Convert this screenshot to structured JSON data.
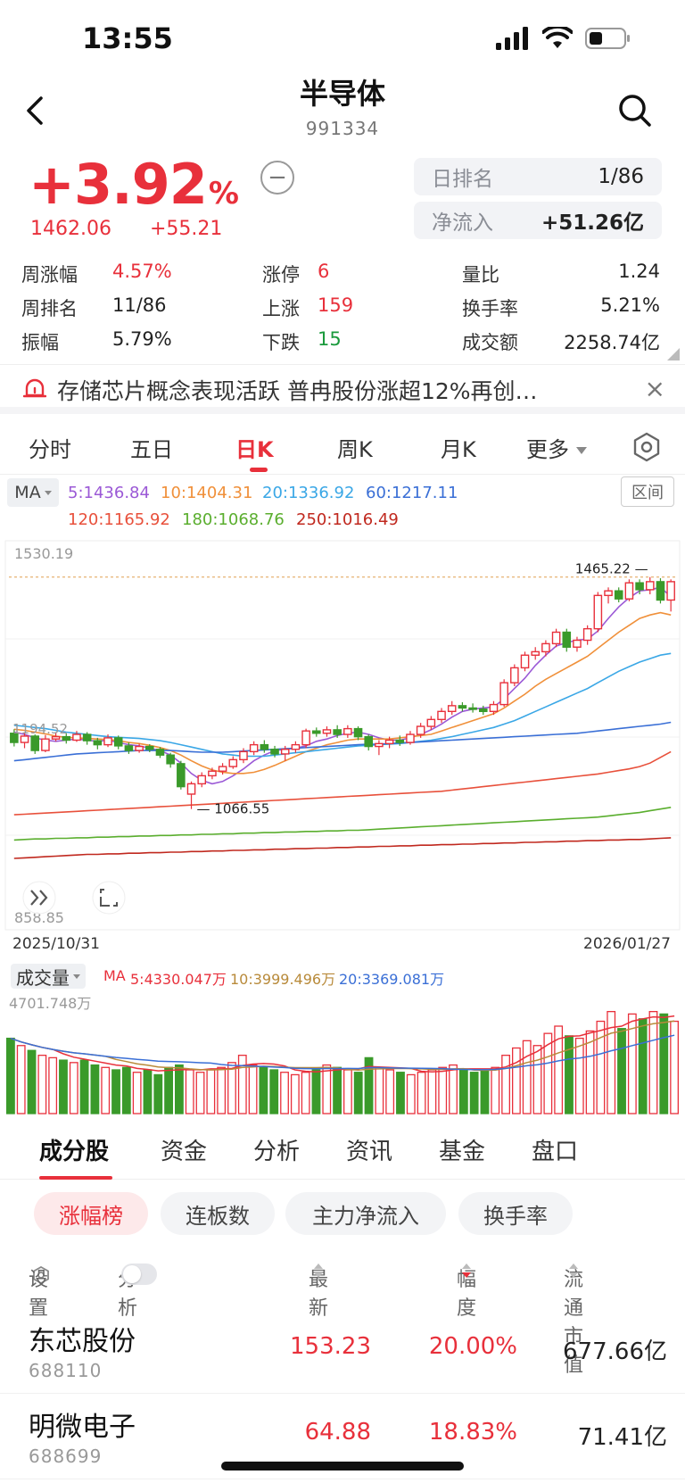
{
  "status_bar": {
    "time": "13:55"
  },
  "header": {
    "title": "半导体",
    "code": "991334"
  },
  "quote": {
    "change_pct": "+3.92",
    "pct_unit": "%",
    "price": "1462.06",
    "change": "+55.21",
    "minus_symbol": "−",
    "day_rank_label": "日排名",
    "day_rank_value": "1/86",
    "net_inflow_label": "净流入",
    "net_inflow_value": "+51.26亿"
  },
  "stats": [
    [
      {
        "k": "周涨幅",
        "v": "4.57%",
        "c": "red"
      },
      {
        "k": "涨停",
        "v": "6",
        "c": "red"
      },
      {
        "k": "量比",
        "v": "1.24",
        "c": "dark"
      }
    ],
    [
      {
        "k": "周排名",
        "v": "11/86",
        "c": "dark"
      },
      {
        "k": "上涨",
        "v": "159",
        "c": "red"
      },
      {
        "k": "换手率",
        "v": "5.21%",
        "c": "dark"
      }
    ],
    [
      {
        "k": "振幅",
        "v": "5.79%",
        "c": "dark"
      },
      {
        "k": "下跌",
        "v": "15",
        "c": "green"
      },
      {
        "k": "成交额",
        "v": "2258.74亿",
        "c": "dark"
      }
    ]
  ],
  "news": {
    "text": "存储芯片概念表现活跃  普冉股份涨超12%再创…",
    "close": "×"
  },
  "period_tabs": [
    "分时",
    "五日",
    "日K",
    "周K",
    "月K",
    "更多"
  ],
  "active_period": "日K",
  "ma_legend": {
    "selector": "MA",
    "range_button": "区间",
    "line1": [
      {
        "label": "5:1436.84",
        "color": "#9b59d6"
      },
      {
        "label": "10:1404.31",
        "color": "#f0903a"
      },
      {
        "label": "20:1336.92",
        "color": "#3aa7e6"
      },
      {
        "label": "60:1217.11",
        "color": "#3a6fd6"
      }
    ],
    "line2": [
      {
        "label": "120:1165.92",
        "color": "#e8503b"
      },
      {
        "label": "180:1068.76",
        "color": "#5aae2e"
      },
      {
        "label": "250:1016.49",
        "color": "#c0281e"
      }
    ]
  },
  "chart_data": {
    "type": "candlestick",
    "start_date": "2025/10/31",
    "end_date": "2026/01/27",
    "y_top_label": "1530.19",
    "y_bottom_label": "858.85",
    "ylim": [
      858.85,
      1530.19
    ],
    "high_annotation": "1465.22",
    "low_annotation": "1066.55",
    "left_annotation": "1194.52",
    "candles": [
      [
        1198,
        1182,
        1205,
        1175
      ],
      [
        1182,
        1193,
        1200,
        1172
      ],
      [
        1193,
        1168,
        1196,
        1162
      ],
      [
        1168,
        1188,
        1195,
        1165
      ],
      [
        1188,
        1192,
        1199,
        1184
      ],
      [
        1192,
        1186,
        1198,
        1180
      ],
      [
        1186,
        1196,
        1202,
        1183
      ],
      [
        1196,
        1185,
        1200,
        1178
      ],
      [
        1185,
        1178,
        1190,
        1170
      ],
      [
        1178,
        1190,
        1196,
        1174
      ],
      [
        1190,
        1176,
        1194,
        1170
      ],
      [
        1176,
        1168,
        1182,
        1162
      ],
      [
        1168,
        1175,
        1180,
        1164
      ],
      [
        1175,
        1170,
        1179,
        1165
      ],
      [
        1170,
        1160,
        1174,
        1155
      ],
      [
        1160,
        1145,
        1164,
        1138
      ],
      [
        1145,
        1105,
        1150,
        1100
      ],
      [
        1092,
        1110,
        1114,
        1066
      ],
      [
        1110,
        1124,
        1130,
        1104
      ],
      [
        1124,
        1132,
        1138,
        1118
      ],
      [
        1132,
        1140,
        1146,
        1126
      ],
      [
        1140,
        1152,
        1158,
        1136
      ],
      [
        1152,
        1166,
        1172,
        1146
      ],
      [
        1166,
        1178,
        1184,
        1160
      ],
      [
        1178,
        1170,
        1186,
        1164
      ],
      [
        1170,
        1162,
        1176,
        1156
      ],
      [
        1162,
        1170,
        1176,
        1150
      ],
      [
        1170,
        1178,
        1184,
        1164
      ],
      [
        1178,
        1202,
        1206,
        1172
      ],
      [
        1202,
        1198,
        1208,
        1192
      ],
      [
        1198,
        1204,
        1210,
        1192
      ],
      [
        1204,
        1196,
        1212,
        1190
      ],
      [
        1196,
        1206,
        1212,
        1190
      ],
      [
        1206,
        1192,
        1210,
        1186
      ],
      [
        1192,
        1175,
        1196,
        1168
      ],
      [
        1175,
        1180,
        1186,
        1160
      ],
      [
        1180,
        1186,
        1192,
        1172
      ],
      [
        1186,
        1182,
        1194,
        1176
      ],
      [
        1182,
        1196,
        1202,
        1178
      ],
      [
        1196,
        1210,
        1216,
        1190
      ],
      [
        1210,
        1222,
        1228,
        1204
      ],
      [
        1222,
        1236,
        1242,
        1216
      ],
      [
        1236,
        1246,
        1254,
        1230
      ],
      [
        1246,
        1242,
        1252,
        1236
      ],
      [
        1242,
        1240,
        1250,
        1234
      ],
      [
        1240,
        1236,
        1246,
        1230
      ],
      [
        1236,
        1248,
        1254,
        1230
      ],
      [
        1248,
        1286,
        1292,
        1244
      ],
      [
        1286,
        1312,
        1318,
        1280
      ],
      [
        1312,
        1334,
        1340,
        1306
      ],
      [
        1334,
        1340,
        1348,
        1326
      ],
      [
        1340,
        1354,
        1360,
        1332
      ],
      [
        1354,
        1374,
        1380,
        1348
      ],
      [
        1374,
        1348,
        1380,
        1340
      ],
      [
        1348,
        1360,
        1366,
        1340
      ],
      [
        1360,
        1380,
        1386,
        1352
      ],
      [
        1380,
        1438,
        1444,
        1374
      ],
      [
        1438,
        1446,
        1452,
        1424
      ],
      [
        1446,
        1432,
        1452,
        1426
      ],
      [
        1432,
        1460,
        1466,
        1428
      ],
      [
        1460,
        1448,
        1466,
        1440
      ],
      [
        1448,
        1462,
        1470,
        1440
      ],
      [
        1462,
        1430,
        1468,
        1424
      ],
      [
        1430,
        1462,
        1466,
        1410
      ]
    ],
    "moving_averages": [
      {
        "name": "5",
        "color": "#9b59d6",
        "values": [
          1200,
          1196,
          1190,
          1186,
          1184,
          1186,
          1188,
          1186,
          1184,
          1186,
          1182,
          1178,
          1176,
          1172,
          1168,
          1160,
          1146,
          1128,
          1116,
          1110,
          1114,
          1124,
          1136,
          1150,
          1160,
          1168,
          1170,
          1172,
          1176,
          1184,
          1188,
          1194,
          1198,
          1200,
          1196,
          1190,
          1186,
          1186,
          1190,
          1196,
          1204,
          1214,
          1226,
          1236,
          1240,
          1242,
          1244,
          1258,
          1276,
          1294,
          1316,
          1334,
          1350,
          1356,
          1360,
          1362,
          1376,
          1398,
          1418,
          1434,
          1446,
          1448,
          1452,
          1436
        ]
      },
      {
        "name": "10",
        "color": "#f0903a",
        "values": [
          1205,
          1203,
          1200,
          1197,
          1193,
          1191,
          1190,
          1189,
          1188,
          1187,
          1185,
          1182,
          1180,
          1177,
          1173,
          1168,
          1160,
          1150,
          1141,
          1134,
          1130,
          1128,
          1128,
          1130,
          1135,
          1142,
          1150,
          1158,
          1166,
          1172,
          1178,
          1182,
          1186,
          1188,
          1188,
          1188,
          1188,
          1190,
          1192,
          1194,
          1196,
          1202,
          1208,
          1214,
          1220,
          1226,
          1232,
          1242,
          1254,
          1266,
          1280,
          1292,
          1302,
          1312,
          1322,
          1332,
          1346,
          1360,
          1374,
          1386,
          1398,
          1404,
          1408,
          1404
        ]
      },
      {
        "name": "20",
        "color": "#3aa7e6",
        "values": [
          1212,
          1210,
          1208,
          1206,
          1203,
          1200,
          1198,
          1196,
          1194,
          1192,
          1191,
          1190,
          1189,
          1187,
          1185,
          1182,
          1178,
          1174,
          1170,
          1166,
          1162,
          1160,
          1158,
          1158,
          1158,
          1160,
          1162,
          1164,
          1166,
          1168,
          1170,
          1172,
          1174,
          1176,
          1177,
          1178,
          1179,
          1180,
          1182,
          1184,
          1186,
          1189,
          1192,
          1196,
          1200,
          1204,
          1208,
          1214,
          1220,
          1228,
          1236,
          1244,
          1252,
          1260,
          1268,
          1276,
          1286,
          1296,
          1306,
          1314,
          1322,
          1328,
          1334,
          1337
        ]
      },
      {
        "name": "60",
        "color": "#3a6fd6",
        "values": [
          1150,
          1152,
          1154,
          1156,
          1158,
          1160,
          1162,
          1163,
          1164,
          1165,
          1166,
          1167,
          1168,
          1168,
          1168,
          1168,
          1167,
          1166,
          1165,
          1165,
          1165,
          1166,
          1167,
          1168,
          1169,
          1170,
          1171,
          1172,
          1173,
          1174,
          1175,
          1176,
          1177,
          1178,
          1179,
          1179,
          1180,
          1181,
          1182,
          1183,
          1184,
          1185,
          1186,
          1187,
          1188,
          1189,
          1190,
          1191,
          1192,
          1193,
          1194,
          1195,
          1196,
          1197,
          1198,
          1200,
          1202,
          1204,
          1206,
          1208,
          1210,
          1212,
          1214,
          1217
        ]
      },
      {
        "name": "120",
        "color": "#e8503b",
        "values": [
          1056,
          1057,
          1058,
          1059,
          1060,
          1061,
          1062,
          1063,
          1064,
          1065,
          1066,
          1067,
          1068,
          1069,
          1070,
          1071,
          1072,
          1073,
          1074,
          1075,
          1076,
          1077,
          1078,
          1079,
          1080,
          1081,
          1082,
          1083,
          1084,
          1085,
          1086,
          1087,
          1088,
          1089,
          1090,
          1091,
          1092,
          1093,
          1094,
          1095,
          1096,
          1097,
          1099,
          1101,
          1103,
          1105,
          1107,
          1109,
          1111,
          1113,
          1115,
          1117,
          1119,
          1121,
          1123,
          1125,
          1127,
          1130,
          1133,
          1136,
          1140,
          1146,
          1156,
          1166
        ]
      },
      {
        "name": "180",
        "color": "#5aae2e",
        "values": [
          1012,
          1013,
          1014,
          1014,
          1015,
          1015,
          1016,
          1016,
          1017,
          1017,
          1018,
          1018,
          1019,
          1019,
          1020,
          1020,
          1021,
          1021,
          1022,
          1022,
          1023,
          1023,
          1024,
          1024,
          1025,
          1025,
          1026,
          1026,
          1027,
          1027,
          1028,
          1028,
          1029,
          1029,
          1030,
          1031,
          1032,
          1033,
          1034,
          1035,
          1036,
          1037,
          1038,
          1039,
          1040,
          1041,
          1042,
          1043,
          1044,
          1045,
          1046,
          1047,
          1048,
          1049,
          1050,
          1051,
          1052,
          1054,
          1056,
          1058,
          1060,
          1063,
          1066,
          1069
        ]
      },
      {
        "name": "250",
        "color": "#c0281e",
        "values": [
          980,
          981,
          982,
          983,
          984,
          985,
          986,
          987,
          987,
          988,
          988,
          989,
          989,
          990,
          990,
          991,
          991,
          992,
          992,
          993,
          993,
          994,
          994,
          995,
          995,
          996,
          996,
          997,
          997,
          998,
          998,
          999,
          999,
          1000,
          1000,
          1001,
          1001,
          1002,
          1002,
          1003,
          1003,
          1004,
          1004,
          1005,
          1005,
          1006,
          1006,
          1007,
          1007,
          1008,
          1008,
          1009,
          1009,
          1010,
          1010,
          1011,
          1011,
          1012,
          1012,
          1013,
          1013,
          1014,
          1015,
          1016
        ]
      }
    ]
  },
  "volume_data": {
    "selector": "成交量",
    "ma_prefix": "MA",
    "ma_labels": [
      {
        "label": "5:4330.047万",
        "color": "#e8303b"
      },
      {
        "label": "10:3999.496万",
        "color": "#b88a3a"
      },
      {
        "label": "20:3369.081万",
        "color": "#3a6fd6"
      }
    ],
    "max_label": "4701.748万",
    "ylim": [
      0,
      4701.748
    ],
    "values": [
      3100,
      2800,
      2600,
      2400,
      2300,
      2200,
      2100,
      2200,
      2000,
      1900,
      1800,
      1900,
      1700,
      1800,
      1600,
      1900,
      2000,
      1800,
      1700,
      1800,
      1900,
      2100,
      2400,
      2000,
      1900,
      1800,
      1700,
      1600,
      1700,
      1800,
      2000,
      1900,
      1800,
      1700,
      2300,
      1900,
      1800,
      1700,
      1600,
      1700,
      1800,
      1900,
      2000,
      1800,
      1700,
      1800,
      1900,
      2400,
      2700,
      3000,
      2800,
      3300,
      3600,
      3200,
      3100,
      3400,
      3800,
      4200,
      3500,
      4100,
      3900,
      4200,
      4100,
      3800
    ]
  },
  "sub_tabs": [
    "成分股",
    "资金",
    "分析",
    "资讯",
    "基金",
    "盘口"
  ],
  "active_sub_tab": "成分股",
  "chips": [
    "涨幅榜",
    "连板数",
    "主力净流入",
    "换手率"
  ],
  "active_chip": "涨幅榜",
  "list_header": {
    "settings": "设置",
    "analysis": "分析",
    "latest": "最新",
    "change": "幅度",
    "cap": "流通市值"
  },
  "stocks": [
    {
      "name": "东芯股份",
      "code": "688110",
      "last": "153.23",
      "pct": "20.00%",
      "cap": "677.66亿"
    },
    {
      "name": "明微电子",
      "code": "688699",
      "last": "64.88",
      "pct": "18.83%",
      "cap": "71.41亿"
    }
  ]
}
